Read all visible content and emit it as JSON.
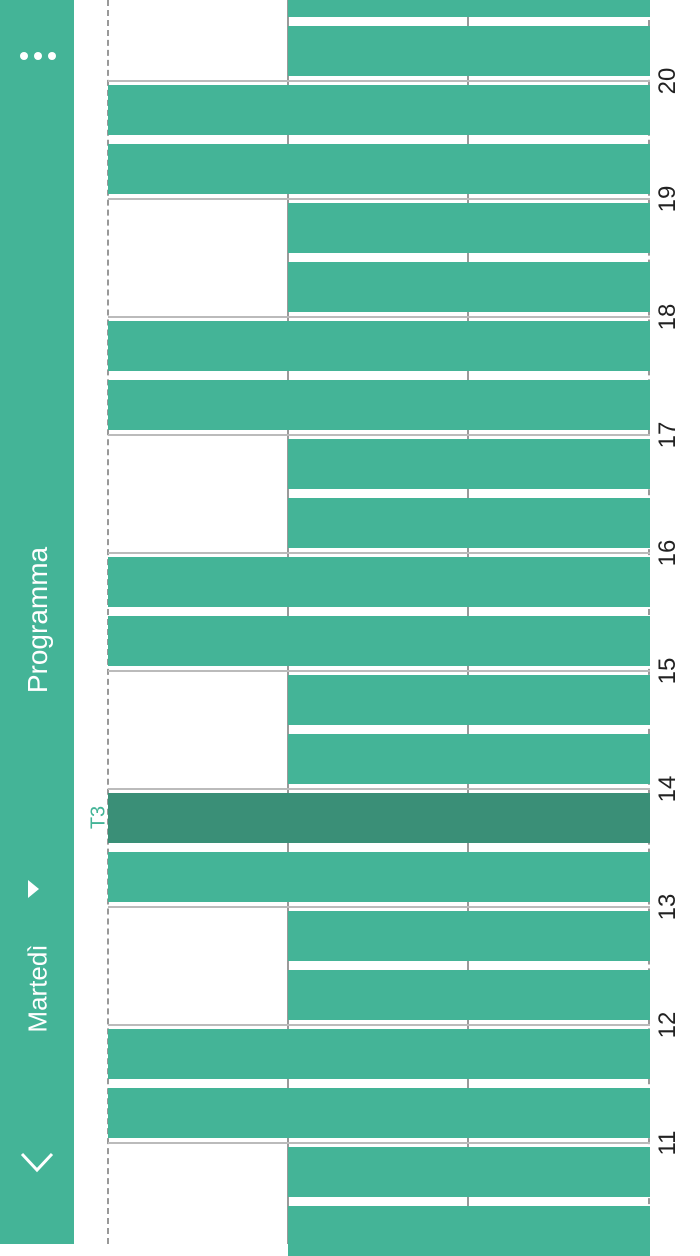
{
  "header": {
    "title": "Programma",
    "day": "Martedì",
    "back_icon": "chevron-down-icon",
    "day_dropdown_icon": "triangle-right-icon",
    "menu_icon": "more-dots-icon"
  },
  "colors": {
    "accent": "#44b497",
    "highlight": "#3a8f77"
  },
  "schedule": {
    "hours": [
      "11",
      "12",
      "13",
      "14",
      "15",
      "16",
      "17",
      "18",
      "19",
      "20"
    ],
    "marker_label": "T3",
    "slots": [
      {
        "start": "10:00",
        "type": "partial"
      },
      {
        "start": "10:30",
        "type": "partial"
      },
      {
        "start": "11:00",
        "type": "full"
      },
      {
        "start": "11:30",
        "type": "full"
      },
      {
        "start": "12:00",
        "type": "partial"
      },
      {
        "start": "12:30",
        "type": "partial"
      },
      {
        "start": "13:00",
        "type": "full"
      },
      {
        "start": "13:30",
        "type": "full",
        "highlight": true
      },
      {
        "start": "14:00",
        "type": "partial"
      },
      {
        "start": "14:30",
        "type": "partial"
      },
      {
        "start": "15:00",
        "type": "full"
      },
      {
        "start": "15:30",
        "type": "full"
      },
      {
        "start": "16:00",
        "type": "partial"
      },
      {
        "start": "16:30",
        "type": "partial"
      },
      {
        "start": "17:00",
        "type": "full"
      },
      {
        "start": "17:30",
        "type": "full"
      },
      {
        "start": "18:00",
        "type": "partial"
      },
      {
        "start": "18:30",
        "type": "partial"
      },
      {
        "start": "19:00",
        "type": "full"
      },
      {
        "start": "19:30",
        "type": "full"
      },
      {
        "start": "20:00",
        "type": "partial"
      },
      {
        "start": "20:30",
        "type": "partial"
      }
    ]
  }
}
